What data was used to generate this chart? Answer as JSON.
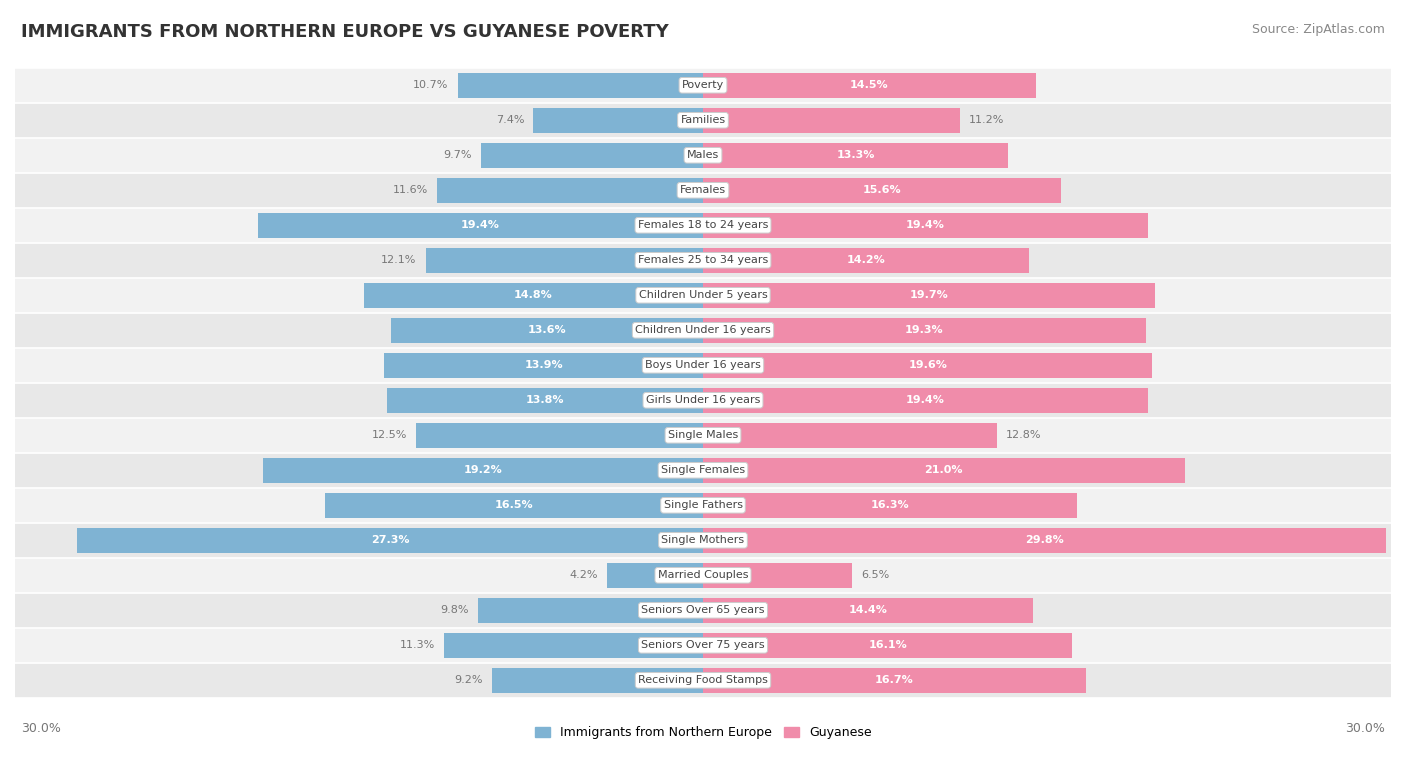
{
  "title": "IMMIGRANTS FROM NORTHERN EUROPE VS GUYANESE POVERTY",
  "source": "Source: ZipAtlas.com",
  "categories": [
    "Poverty",
    "Families",
    "Males",
    "Females",
    "Females 18 to 24 years",
    "Females 25 to 34 years",
    "Children Under 5 years",
    "Children Under 16 years",
    "Boys Under 16 years",
    "Girls Under 16 years",
    "Single Males",
    "Single Females",
    "Single Fathers",
    "Single Mothers",
    "Married Couples",
    "Seniors Over 65 years",
    "Seniors Over 75 years",
    "Receiving Food Stamps"
  ],
  "left_values": [
    10.7,
    7.4,
    9.7,
    11.6,
    19.4,
    12.1,
    14.8,
    13.6,
    13.9,
    13.8,
    12.5,
    19.2,
    16.5,
    27.3,
    4.2,
    9.8,
    11.3,
    9.2
  ],
  "right_values": [
    14.5,
    11.2,
    13.3,
    15.6,
    19.4,
    14.2,
    19.7,
    19.3,
    19.6,
    19.4,
    12.8,
    21.0,
    16.3,
    29.8,
    6.5,
    14.4,
    16.1,
    16.7
  ],
  "left_color": "#7fb3d3",
  "right_color": "#f08caa",
  "max_val": 30.0,
  "title_fontsize": 13,
  "source_fontsize": 9,
  "legend_label_left": "Immigrants from Northern Europe",
  "legend_label_right": "Guyanese",
  "axis_label": "30.0%",
  "cat_label_threshold": 15.0,
  "val_label_threshold": 13.0
}
